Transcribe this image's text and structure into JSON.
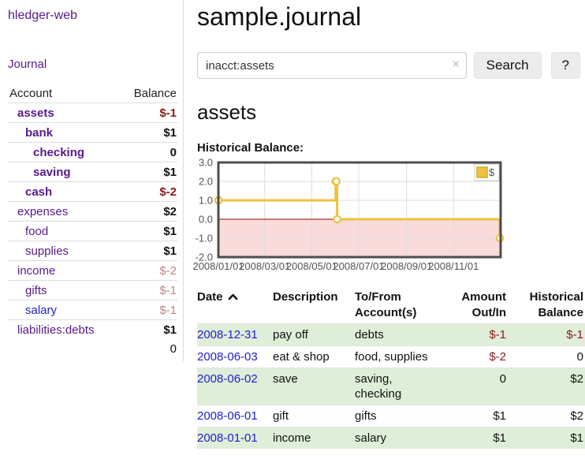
{
  "app": {
    "title": "hledger-web",
    "nav_journal": "Journal"
  },
  "colors": {
    "link_purple": "#551a8b",
    "link_blue": "#2020d0",
    "negative_strong": "#8b1b1b",
    "negative_muted": "#bd8585",
    "row_stripe_green": "#dfeed8",
    "chart_line_gold": "#edc240",
    "chart_negative_fill": "#fadbdb",
    "chart_zero_line": "#990000"
  },
  "sidebar": {
    "columns": [
      "Account",
      "Balance"
    ],
    "accounts": [
      {
        "name": "assets",
        "depth": 1,
        "bold": true,
        "link": "purple",
        "balance": "$-1",
        "balance_class": "neg-strong"
      },
      {
        "name": "bank",
        "depth": 2,
        "bold": true,
        "link": "purple",
        "balance": "$1",
        "balance_class": "pos-strong"
      },
      {
        "name": "checking",
        "depth": 3,
        "bold": true,
        "link": "purple",
        "balance": "0",
        "balance_class": "pos-strong"
      },
      {
        "name": "saving",
        "depth": 3,
        "bold": true,
        "link": "purple",
        "balance": "$1",
        "balance_class": "pos-strong"
      },
      {
        "name": "cash",
        "depth": 2,
        "bold": true,
        "link": "purple",
        "balance": "$-2",
        "balance_class": "neg-strong"
      },
      {
        "name": "expenses",
        "depth": 1,
        "bold": false,
        "link": "purple",
        "balance": "$2",
        "balance_class": "pos"
      },
      {
        "name": "food",
        "depth": 2,
        "bold": false,
        "link": "purple",
        "balance": "$1",
        "balance_class": "pos"
      },
      {
        "name": "supplies",
        "depth": 2,
        "bold": false,
        "link": "purple",
        "balance": "$1",
        "balance_class": "pos"
      },
      {
        "name": "income",
        "depth": 1,
        "bold": false,
        "link": "purple",
        "balance": "$-2",
        "balance_class": "neg-muted"
      },
      {
        "name": "gifts",
        "depth": 2,
        "bold": false,
        "link": "purple",
        "balance": "$-1",
        "balance_class": "neg-muted"
      },
      {
        "name": "salary",
        "depth": 2,
        "bold": false,
        "link": "blue",
        "balance": "$-1",
        "balance_class": "neg-muted"
      },
      {
        "name": "liabilities:debts",
        "depth": 1,
        "bold": false,
        "link": "purple",
        "balance": "$1",
        "balance_class": "pos"
      }
    ],
    "total": "0"
  },
  "header": {
    "title": "sample.journal"
  },
  "search": {
    "value": "inacct:assets",
    "clear_icon": "×",
    "button_label": "Search",
    "help_label": "?"
  },
  "account_page": {
    "heading": "assets",
    "chart_label": "Historical Balance:"
  },
  "chart_data": {
    "type": "line",
    "step": true,
    "title": "Historical Balance",
    "series": [
      {
        "name": "$",
        "color": "#edc240",
        "points": [
          [
            "2008-01-01",
            1
          ],
          [
            "2008-06-01",
            2
          ],
          [
            "2008-06-02",
            2
          ],
          [
            "2008-06-03",
            0
          ],
          [
            "2008-12-31",
            -1
          ]
        ]
      }
    ],
    "xrange": [
      "2008-01-01",
      "2009-01-01"
    ],
    "ylim": [
      -2,
      3
    ],
    "yticks": [
      "3.0",
      "2.0",
      "1.0",
      "0.0",
      "-1.0",
      "-2.0"
    ],
    "xticks": [
      {
        "label": "2008/01/01",
        "date": "2008-01-01"
      },
      {
        "label": "2008/03/01",
        "date": "2008-03-01"
      },
      {
        "label": "2008/05/01",
        "date": "2008-05-01"
      },
      {
        "label": "2008/07/01",
        "date": "2008-07-01"
      },
      {
        "label": "2008/09/01",
        "date": "2008-09-01"
      },
      {
        "label": "2008/11/01",
        "date": "2008-11-01"
      }
    ],
    "grid": true,
    "legend_position": "top-right",
    "negative_fill": "#fadbdb",
    "zero_line_color": "#990000"
  },
  "register": {
    "columns": {
      "date": "Date",
      "description": "Description",
      "tofrom": [
        "To/From",
        "Account(s)"
      ],
      "amount": [
        "Amount",
        "Out/In"
      ],
      "balance": [
        "Historical",
        "Balance"
      ]
    },
    "rows": [
      {
        "date": "2008-12-31",
        "description": "pay off",
        "accounts": "debts",
        "amount": "$-1",
        "amount_class": "neg",
        "balance": "$-1",
        "balance_class": "neg"
      },
      {
        "date": "2008-06-03",
        "description": "eat & shop",
        "accounts": "food, supplies",
        "amount": "$-2",
        "amount_class": "neg",
        "balance": "0",
        "balance_class": "pos"
      },
      {
        "date": "2008-06-02",
        "description": "save",
        "accounts": "saving, checking",
        "amount": "0",
        "amount_class": "pos",
        "balance": "$2",
        "balance_class": "pos"
      },
      {
        "date": "2008-06-01",
        "description": "gift",
        "accounts": "gifts",
        "amount": "$1",
        "amount_class": "pos",
        "balance": "$2",
        "balance_class": "pos"
      },
      {
        "date": "2008-01-01",
        "description": "income",
        "accounts": "salary",
        "amount": "$1",
        "amount_class": "pos",
        "balance": "$1",
        "balance_class": "pos"
      }
    ]
  }
}
